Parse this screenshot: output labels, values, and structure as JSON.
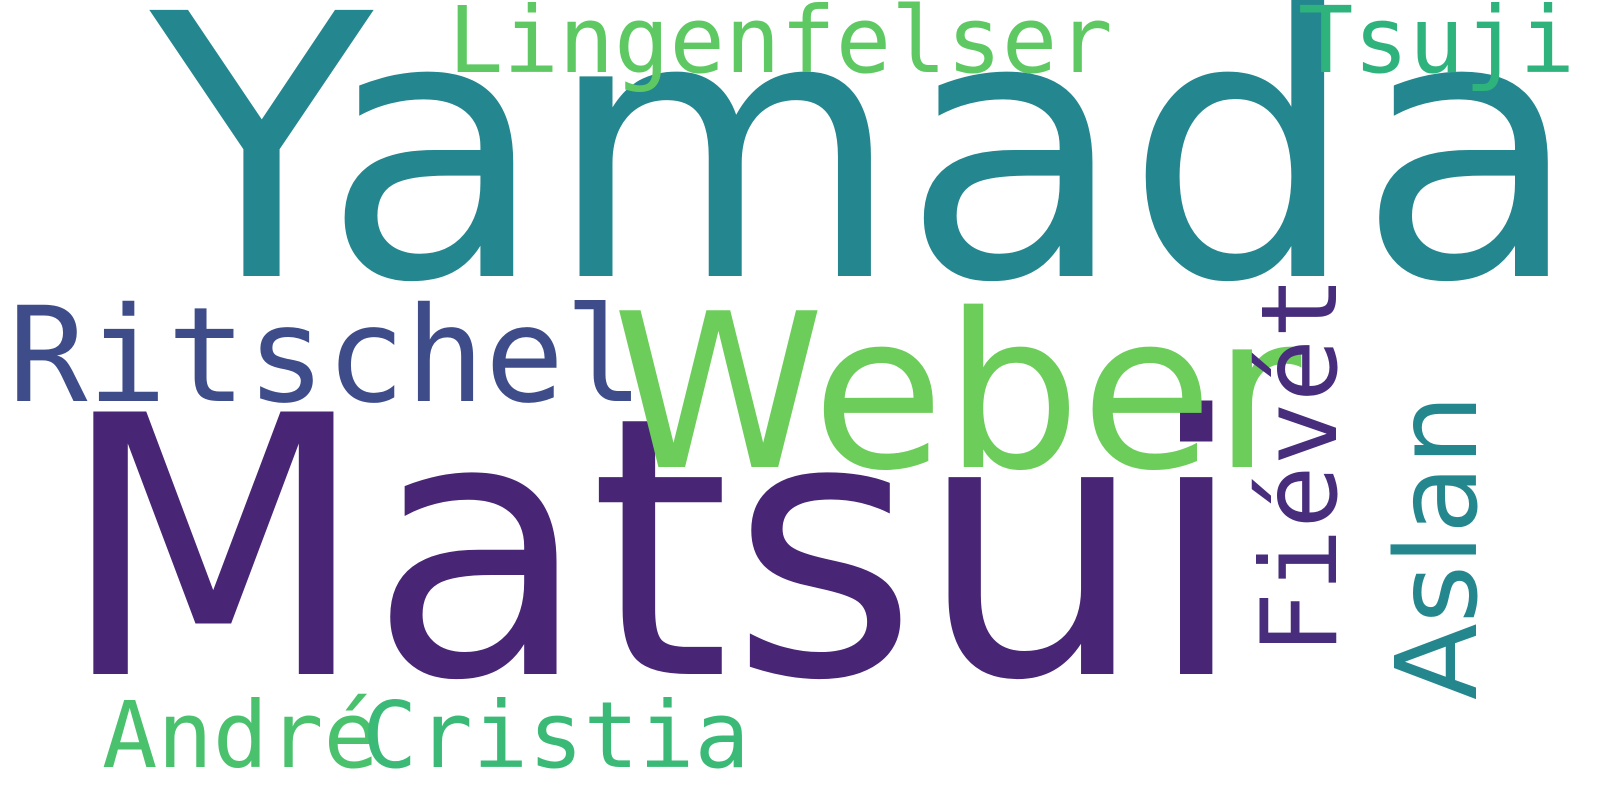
{
  "wordcloud": {
    "words": [
      {
        "text": "Yamada",
        "color": "#24868e"
      },
      {
        "text": "Matsui",
        "color": "#482575"
      },
      {
        "text": "Weber",
        "color": "#6ccd5a"
      },
      {
        "text": "Ritschel",
        "color": "#3e4c8a"
      },
      {
        "text": "Lingenfelser",
        "color": "#5ec962"
      },
      {
        "text": "Tsuji",
        "color": "#2eb37c"
      },
      {
        "text": "Aslan",
        "color": "#25878e"
      },
      {
        "text": "Fiévét",
        "color": "#472d7b"
      },
      {
        "text": "André",
        "color": "#4ac16d"
      },
      {
        "text": "Cristia",
        "color": "#3aba76"
      }
    ]
  }
}
